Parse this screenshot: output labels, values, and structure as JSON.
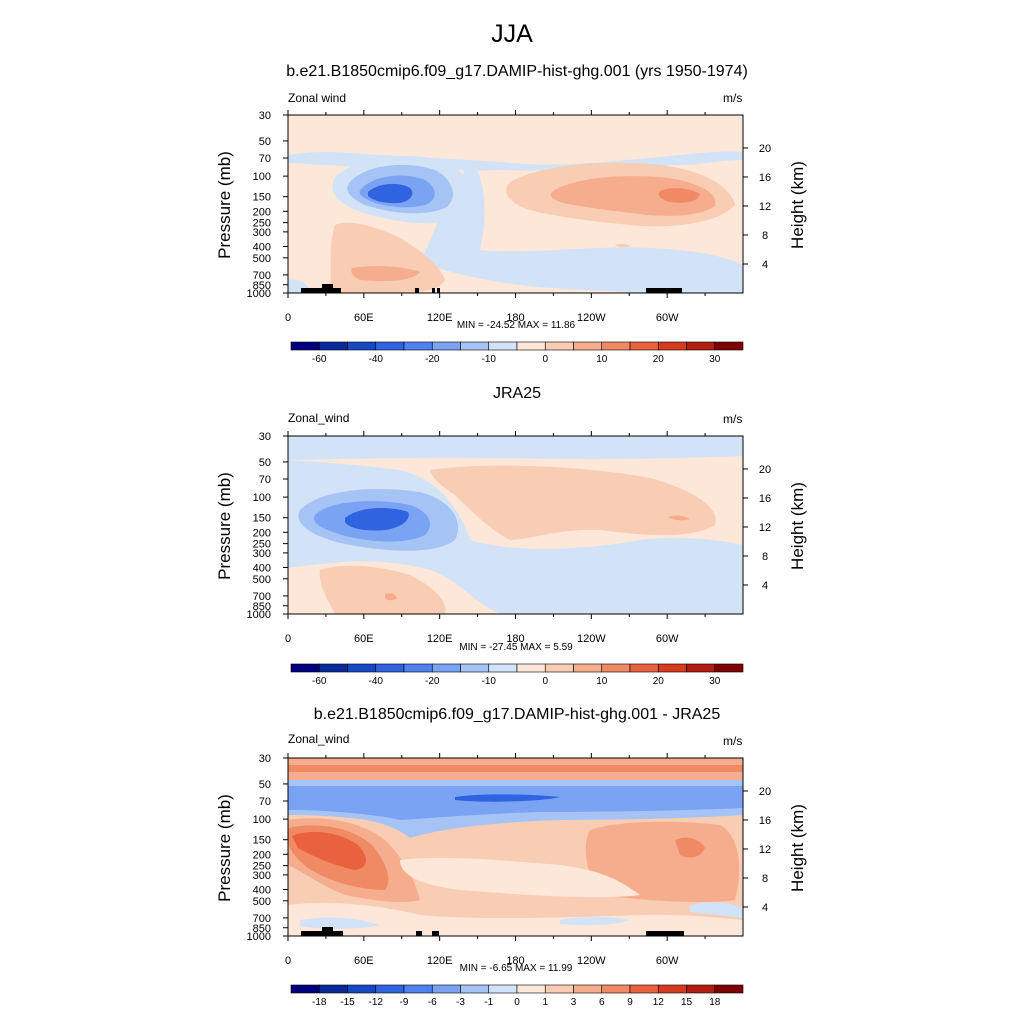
{
  "figure": {
    "title": "JJA"
  },
  "panels": [
    {
      "title": "b.e21.B1850cmip6.f09_g17.DAMIP-hist-ghg.001 (yrs 1950-1974)",
      "left_label": "Zonal wind",
      "right_label": "m/s",
      "stats": "MIN = -24.52  MAX =  11.86"
    },
    {
      "title": "JRA25",
      "left_label": "Zonal_wind",
      "right_label": "m/s",
      "stats": "MIN = -27.45  MAX =   5.59"
    },
    {
      "title": "b.e21.B1850cmip6.f09_g17.DAMIP-hist-ghg.001 - JRA25",
      "left_label": "Zonal_wind",
      "right_label": "m/s",
      "stats": "MIN =  -6.65  MAX =  11.99"
    }
  ],
  "axes": {
    "ylabel_left": "Pressure (mb)",
    "ylabel_right": "Height (km)",
    "pressure_ticks": [
      "30",
      "50",
      "70",
      "100",
      "150",
      "200",
      "250",
      "300",
      "400",
      "500",
      "700",
      "850",
      "1000"
    ],
    "height_ticks": [
      "20",
      "16",
      "12",
      "8",
      "4"
    ],
    "lon_ticks": [
      "0",
      "60E",
      "120E",
      "180",
      "120W",
      "60W"
    ]
  },
  "chart_data": [
    {
      "type": "heatmap",
      "title": "b.e21.B1850cmip6.f09_g17.DAMIP-hist-ghg.001 (yrs 1950-1974)",
      "variable": "Zonal wind",
      "units": "m/s",
      "xlabel": "",
      "ylabel": "Pressure (mb)",
      "ylabel_right": "Height (km)",
      "x_ticks": [
        "0",
        "60E",
        "120E",
        "180",
        "120W",
        "60W"
      ],
      "y_ticks": [
        30,
        50,
        70,
        100,
        150,
        200,
        250,
        300,
        400,
        500,
        700,
        850,
        1000
      ],
      "y_scale": "log",
      "min": -24.52,
      "max": 11.86,
      "colorbar_levels": [
        -60,
        -50,
        -40,
        -30,
        -20,
        -15,
        -10,
        -5,
        0,
        5,
        10,
        15,
        20,
        25,
        30
      ],
      "colorbar_labels": [
        "-60",
        "-40",
        "-20",
        "-10",
        "0",
        "10",
        "20",
        "30"
      ]
    },
    {
      "type": "heatmap",
      "title": "JRA25",
      "variable": "Zonal_wind",
      "units": "m/s",
      "xlabel": "",
      "ylabel": "Pressure (mb)",
      "ylabel_right": "Height (km)",
      "x_ticks": [
        "0",
        "60E",
        "120E",
        "180",
        "120W",
        "60W"
      ],
      "y_ticks": [
        30,
        50,
        70,
        100,
        150,
        200,
        250,
        300,
        400,
        500,
        700,
        850,
        1000
      ],
      "y_scale": "log",
      "min": -27.45,
      "max": 5.59,
      "colorbar_levels": [
        -60,
        -50,
        -40,
        -30,
        -20,
        -15,
        -10,
        -5,
        0,
        5,
        10,
        15,
        20,
        25,
        30
      ],
      "colorbar_labels": [
        "-60",
        "-40",
        "-20",
        "-10",
        "0",
        "10",
        "20",
        "30"
      ]
    },
    {
      "type": "heatmap",
      "title": "b.e21.B1850cmip6.f09_g17.DAMIP-hist-ghg.001 - JRA25",
      "variable": "Zonal_wind",
      "units": "m/s",
      "xlabel": "",
      "ylabel": "Pressure (mb)",
      "ylabel_right": "Height (km)",
      "x_ticks": [
        "0",
        "60E",
        "120E",
        "180",
        "120W",
        "60W"
      ],
      "y_ticks": [
        30,
        50,
        70,
        100,
        150,
        200,
        250,
        300,
        400,
        500,
        700,
        850,
        1000
      ],
      "y_scale": "log",
      "min": -6.65,
      "max": 11.99,
      "colorbar_levels": [
        -18,
        -15,
        -12,
        -9,
        -6,
        -3,
        -1,
        0,
        1,
        3,
        6,
        9,
        12,
        15,
        18
      ],
      "colorbar_labels": [
        "-18",
        "-15",
        "-12",
        "-9",
        "-6",
        "-3",
        "-1",
        "0",
        "1",
        "3",
        "6",
        "9",
        "12",
        "15",
        "18"
      ]
    }
  ],
  "colors": {
    "neg": [
      "#00007f",
      "#0a2a9c",
      "#1748c4",
      "#2f63e0",
      "#4f82ef",
      "#7aa3f3",
      "#a6c3f6",
      "#d2e3f8"
    ],
    "pos": [
      "#fde7d9",
      "#f9ccb4",
      "#f5ad8d",
      "#f08a65",
      "#e9613d",
      "#d63a1f",
      "#b21d0f",
      "#7f0000"
    ]
  }
}
